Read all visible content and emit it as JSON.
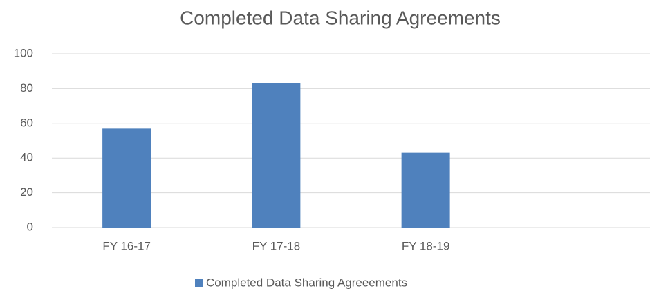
{
  "chart_data": {
    "type": "bar",
    "title": "Completed Data Sharing Agreements",
    "categories": [
      "FY 16-17",
      "FY 17-18",
      "FY 18-19",
      null
    ],
    "series": [
      {
        "name": "Completed Data Sharing Agreeements",
        "color": "#4f81bd",
        "values": [
          57,
          83,
          43,
          null
        ]
      }
    ],
    "ylim": [
      0,
      100
    ],
    "yticks": [
      0,
      20,
      40,
      60,
      80,
      100
    ],
    "grid": true,
    "legend": "bottom"
  }
}
